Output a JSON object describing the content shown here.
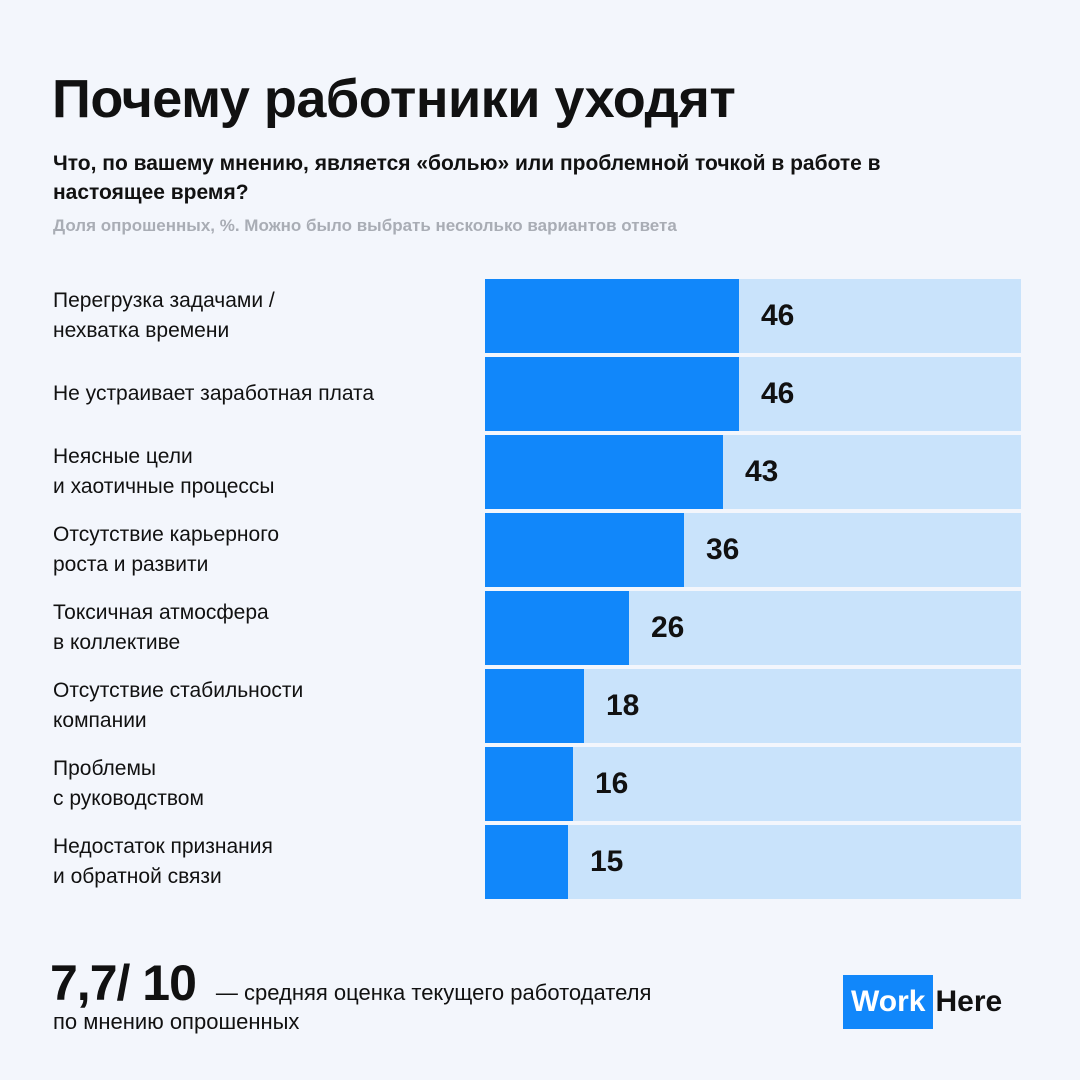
{
  "title": "Почему работники уходят",
  "subtitle": "Что, по вашему мнению, является «болью» или проблемной точкой в работе в настоящее время?",
  "note": "Доля опрошенных, %. Можно было выбрать несколько вариантов ответа",
  "chart_data": {
    "type": "bar",
    "orientation": "horizontal",
    "categories": [
      "Перегрузка задачами /\nнехватка времени",
      "Не устраивает заработная плата",
      "Неясные цели\nи хаотичные процессы",
      "Отсутствие карьерного\nроста и развити",
      "Токсичная атмосфера\nв коллективе",
      "Отсутствие стабильности\nкомпании",
      "Проблемы\nс руководством",
      "Недостаток признания\nи обратной связи"
    ],
    "values": [
      46,
      46,
      43,
      36,
      26,
      18,
      16,
      15
    ],
    "xlim": [
      0,
      97
    ],
    "grid": false,
    "colors": {
      "fill": "#1187fa",
      "track": "#c9e3fb"
    }
  },
  "footer": {
    "score": "7,7/ 10",
    "score_text_line1": "— средняя оценка текущего работодателя",
    "score_text_line2": "по мнению опрошенных"
  },
  "logo": {
    "part1": "Work",
    "part2": "Here"
  }
}
